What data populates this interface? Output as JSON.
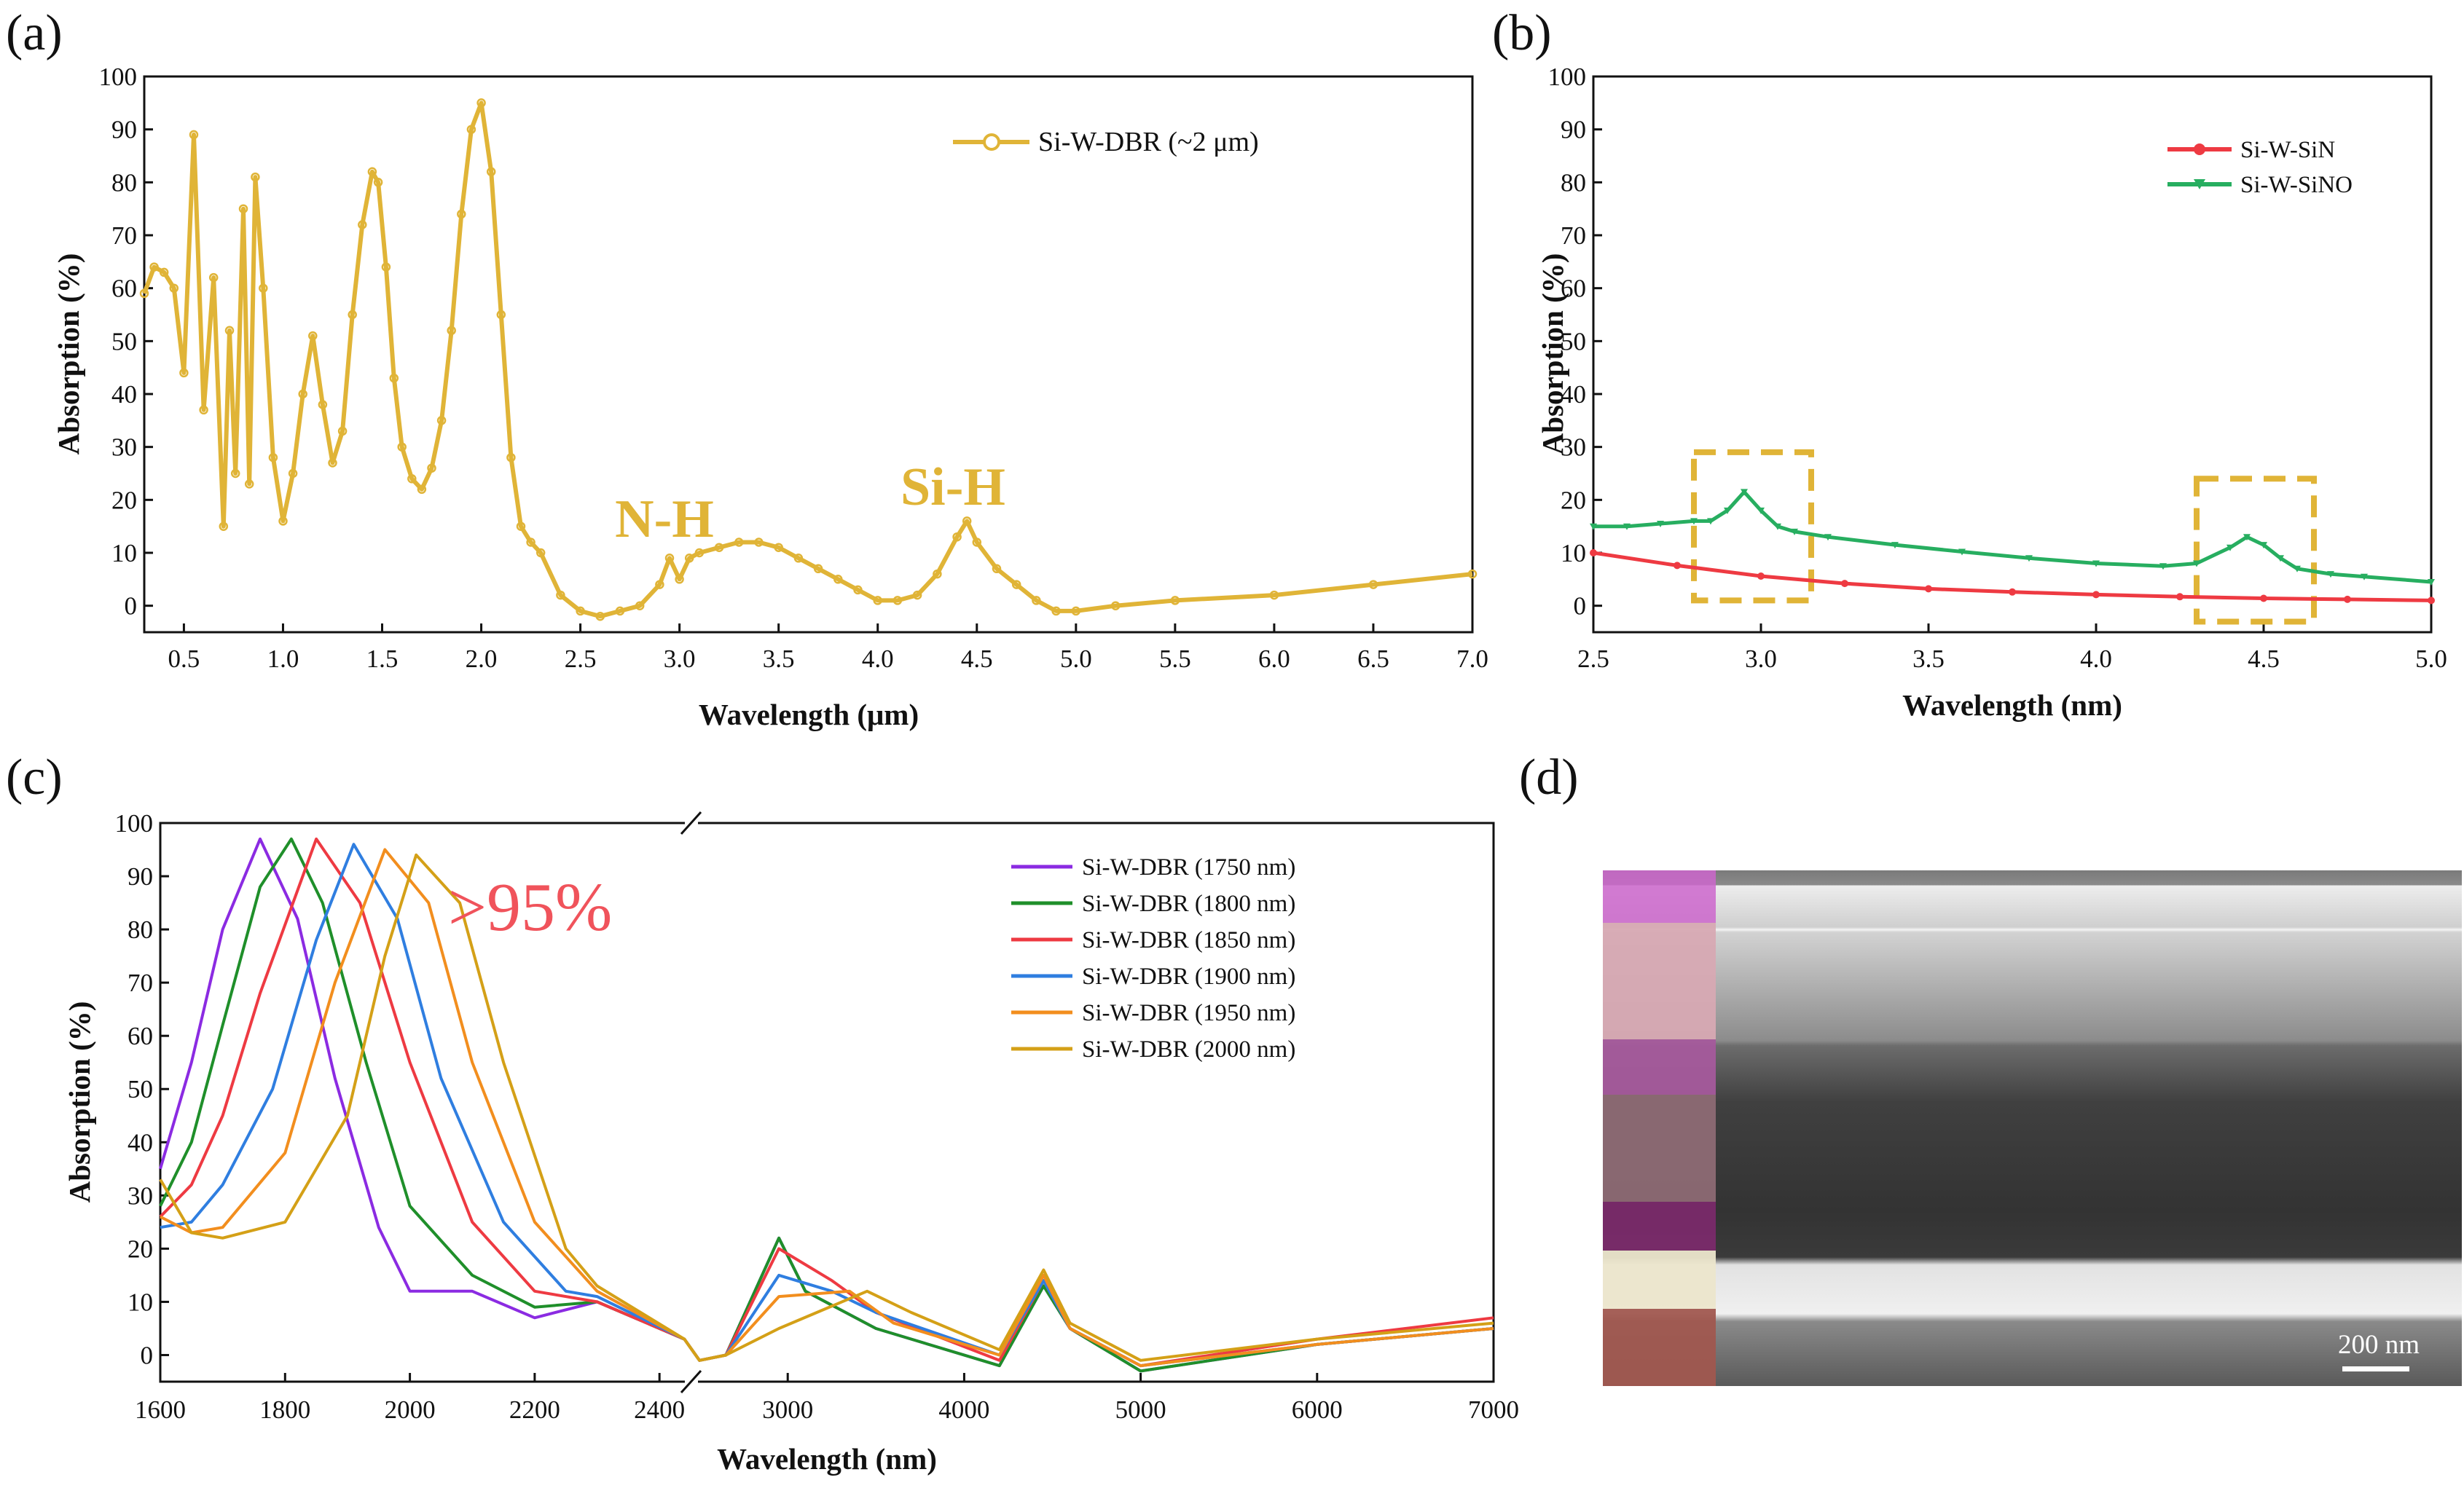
{
  "chart_data": [
    {
      "panel": "(a)",
      "type": "line",
      "xlabel": "Wavelength (μm)",
      "ylabel": "Absorption (%)",
      "xlim": [
        0.3,
        7.0
      ],
      "ylim": [
        -5,
        100
      ],
      "xticks": [
        "0.5",
        "1.0",
        "1.5",
        "2.0",
        "2.5",
        "3.0",
        "3.5",
        "4.0",
        "4.5",
        "5.0",
        "5.5",
        "6.0",
        "6.5",
        "7.0"
      ],
      "yticks": [
        "0",
        "10",
        "20",
        "30",
        "40",
        "50",
        "60",
        "70",
        "80",
        "90",
        "100"
      ],
      "legend": [
        "Si-W-DBR (~2 μm)"
      ],
      "annotations": [
        {
          "text": "N-H",
          "x": 2.95,
          "y": 13
        },
        {
          "text": "Si-H",
          "x": 4.45,
          "y": 21
        }
      ],
      "series": [
        {
          "name": "Si-W-DBR (~2 μm)",
          "color": "#e0b437",
          "x": [
            0.3,
            0.35,
            0.4,
            0.45,
            0.5,
            0.55,
            0.6,
            0.65,
            0.7,
            0.73,
            0.76,
            0.8,
            0.83,
            0.86,
            0.9,
            0.95,
            1.0,
            1.05,
            1.1,
            1.15,
            1.2,
            1.25,
            1.3,
            1.35,
            1.4,
            1.45,
            1.48,
            1.52,
            1.56,
            1.6,
            1.65,
            1.7,
            1.75,
            1.8,
            1.85,
            1.9,
            1.95,
            2.0,
            2.05,
            2.1,
            2.15,
            2.2,
            2.25,
            2.3,
            2.4,
            2.5,
            2.6,
            2.7,
            2.8,
            2.9,
            2.95,
            3.0,
            3.05,
            3.1,
            3.2,
            3.3,
            3.4,
            3.5,
            3.6,
            3.7,
            3.8,
            3.9,
            4.0,
            4.1,
            4.2,
            4.3,
            4.4,
            4.45,
            4.5,
            4.6,
            4.7,
            4.8,
            4.9,
            5.0,
            5.2,
            5.5,
            6.0,
            6.5,
            7.0
          ],
          "y": [
            59,
            64,
            63,
            60,
            44,
            89,
            37,
            62,
            15,
            52,
            25,
            75,
            23,
            81,
            60,
            28,
            16,
            25,
            40,
            51,
            38,
            27,
            33,
            55,
            72,
            82,
            80,
            64,
            43,
            30,
            24,
            22,
            26,
            35,
            52,
            74,
            90,
            95,
            82,
            55,
            28,
            15,
            12,
            10,
            2,
            -1,
            -2,
            -1,
            0,
            4,
            9,
            5,
            9,
            10,
            11,
            12,
            12,
            11,
            9,
            7,
            5,
            3,
            1,
            1,
            2,
            6,
            13,
            16,
            12,
            7,
            4,
            1,
            -1,
            -1,
            0,
            1,
            2,
            4,
            6
          ]
        }
      ]
    },
    {
      "panel": "(b)",
      "type": "line",
      "xlabel": "Wavelength (nm)",
      "ylabel": "Absorption (%)",
      "xlim": [
        2.5,
        5.0
      ],
      "ylim": [
        -5,
        100
      ],
      "xticks": [
        "2.5",
        "3.0",
        "3.5",
        "4.0",
        "4.5",
        "5.0"
      ],
      "yticks": [
        "0",
        "10",
        "20",
        "30",
        "40",
        "50",
        "60",
        "70",
        "80",
        "90",
        "100"
      ],
      "legend": [
        "Si-W-SiN",
        "Si-W-SiNO"
      ],
      "highlight_boxes": [
        {
          "x0": 2.8,
          "x1": 3.15,
          "y0": 1,
          "y1": 29
        },
        {
          "x0": 4.3,
          "x1": 4.65,
          "y0": -3,
          "y1": 24
        }
      ],
      "series": [
        {
          "name": "Si-W-SiN",
          "color": "#ee3a42",
          "x": [
            2.5,
            2.75,
            3.0,
            3.25,
            3.5,
            3.75,
            4.0,
            4.25,
            4.5,
            4.75,
            5.0
          ],
          "y": [
            10,
            7.6,
            5.6,
            4.2,
            3.2,
            2.6,
            2.1,
            1.7,
            1.4,
            1.2,
            1.0
          ]
        },
        {
          "name": "Si-W-SiNO",
          "color": "#27ae60",
          "x": [
            2.5,
            2.6,
            2.7,
            2.8,
            2.85,
            2.9,
            2.95,
            3.0,
            3.05,
            3.1,
            3.2,
            3.4,
            3.6,
            3.8,
            4.0,
            4.2,
            4.3,
            4.4,
            4.45,
            4.5,
            4.55,
            4.6,
            4.7,
            4.8,
            5.0
          ],
          "y": [
            15,
            15,
            15.5,
            16,
            16,
            18,
            21.5,
            18,
            15,
            14,
            13,
            11.5,
            10.2,
            9,
            8,
            7.5,
            8,
            11,
            13,
            11.5,
            9,
            7,
            6,
            5.5,
            4.5
          ]
        }
      ]
    },
    {
      "panel": "(c)",
      "type": "line",
      "xlabel": "Wavelength (nm)",
      "ylabel": "Absorption (%)",
      "xlim": [
        1600,
        7000
      ],
      "ylim": [
        -5,
        100
      ],
      "axis_break": true,
      "xticks": [
        "1600",
        "1800",
        "2000",
        "2200",
        "2400",
        "3000",
        "4000",
        "5000",
        "6000",
        "7000"
      ],
      "yticks": [
        "0",
        "10",
        "20",
        "30",
        "40",
        "50",
        "60",
        "70",
        "80",
        "90",
        "100"
      ],
      "annotations": [
        {
          "text": ">95%"
        }
      ],
      "legend": [
        "Si-W-DBR (1750 nm)",
        "Si-W-DBR (1800 nm)",
        "Si-W-DBR (1850 nm)",
        "Si-W-DBR (1900 nm)",
        "Si-W-DBR (1950 nm)",
        "Si-W-DBR (2000 nm)"
      ],
      "series": [
        {
          "name": "Si-W-DBR (1750 nm)",
          "color": "#8b2be2",
          "x": [
            1600,
            1650,
            1700,
            1760,
            1820,
            1880,
            1950,
            2000,
            2100,
            2200,
            2300,
            2440,
            2500,
            2650,
            2950,
            3100,
            3500,
            4200,
            4450,
            4600,
            5000,
            6000,
            7000
          ],
          "y": [
            35,
            55,
            80,
            97,
            82,
            52,
            24,
            12,
            12,
            7,
            10,
            3,
            -1,
            0,
            22,
            12,
            5,
            -2,
            13,
            5,
            -3,
            2,
            5
          ]
        },
        {
          "name": "Si-W-DBR (1800 nm)",
          "color": "#1f8f2a",
          "x": [
            1600,
            1650,
            1700,
            1760,
            1810,
            1860,
            1930,
            2000,
            2100,
            2200,
            2300,
            2440,
            2500,
            2650,
            2950,
            3100,
            3500,
            4200,
            4450,
            4600,
            5000,
            6000,
            7000
          ],
          "y": [
            28,
            40,
            62,
            88,
            97,
            85,
            55,
            28,
            15,
            9,
            10,
            3,
            -1,
            0,
            22,
            12,
            5,
            -2,
            13,
            5,
            -3,
            2,
            5
          ]
        },
        {
          "name": "Si-W-DBR (1850 nm)",
          "color": "#ee3a42",
          "x": [
            1600,
            1650,
            1700,
            1760,
            1850,
            1920,
            2000,
            2100,
            2200,
            2300,
            2440,
            2500,
            2650,
            2950,
            3250,
            3500,
            4200,
            4450,
            4600,
            5000,
            6000,
            7000
          ],
          "y": [
            26,
            32,
            45,
            68,
            97,
            85,
            55,
            25,
            12,
            10,
            3,
            -1,
            0,
            20,
            14,
            8,
            -1,
            14,
            5,
            -2,
            3,
            7
          ]
        },
        {
          "name": "Si-W-DBR (1900 nm)",
          "color": "#2f7ee0",
          "x": [
            1600,
            1650,
            1700,
            1780,
            1850,
            1910,
            1980,
            2050,
            2150,
            2250,
            2300,
            2440,
            2500,
            2650,
            2950,
            3250,
            3500,
            4200,
            4450,
            4600,
            5000,
            6000,
            7000
          ],
          "y": [
            24,
            25,
            32,
            50,
            78,
            96,
            82,
            52,
            25,
            12,
            11,
            3,
            -1,
            0,
            15,
            12,
            8,
            0,
            14,
            5,
            -2,
            2,
            5
          ]
        },
        {
          "name": "Si-W-DBR (1950 nm)",
          "color": "#f28e1e",
          "x": [
            1600,
            1650,
            1700,
            1800,
            1880,
            1960,
            2030,
            2100,
            2200,
            2300,
            2440,
            2500,
            2650,
            2950,
            3350,
            3600,
            4200,
            4450,
            4600,
            5000,
            6000,
            7000
          ],
          "y": [
            26,
            23,
            24,
            38,
            70,
            95,
            85,
            55,
            25,
            12,
            3,
            -1,
            0,
            11,
            12,
            6,
            0,
            15,
            5,
            -2,
            2,
            5
          ]
        },
        {
          "name": "Si-W-DBR (2000 nm)",
          "color": "#d4a017",
          "x": [
            1600,
            1650,
            1700,
            1800,
            1900,
            1960,
            2010,
            2080,
            2150,
            2250,
            2300,
            2440,
            2500,
            2650,
            2950,
            3450,
            3700,
            4200,
            4450,
            4600,
            5000,
            6000,
            7000
          ],
          "y": [
            33,
            23,
            22,
            25,
            45,
            75,
            94,
            85,
            55,
            20,
            13,
            3,
            -1,
            0,
            5,
            12,
            8,
            1,
            16,
            6,
            -1,
            3,
            6
          ]
        }
      ]
    }
  ],
  "panel_d": {
    "label": "(d)",
    "scale_bar": "200 nm"
  }
}
